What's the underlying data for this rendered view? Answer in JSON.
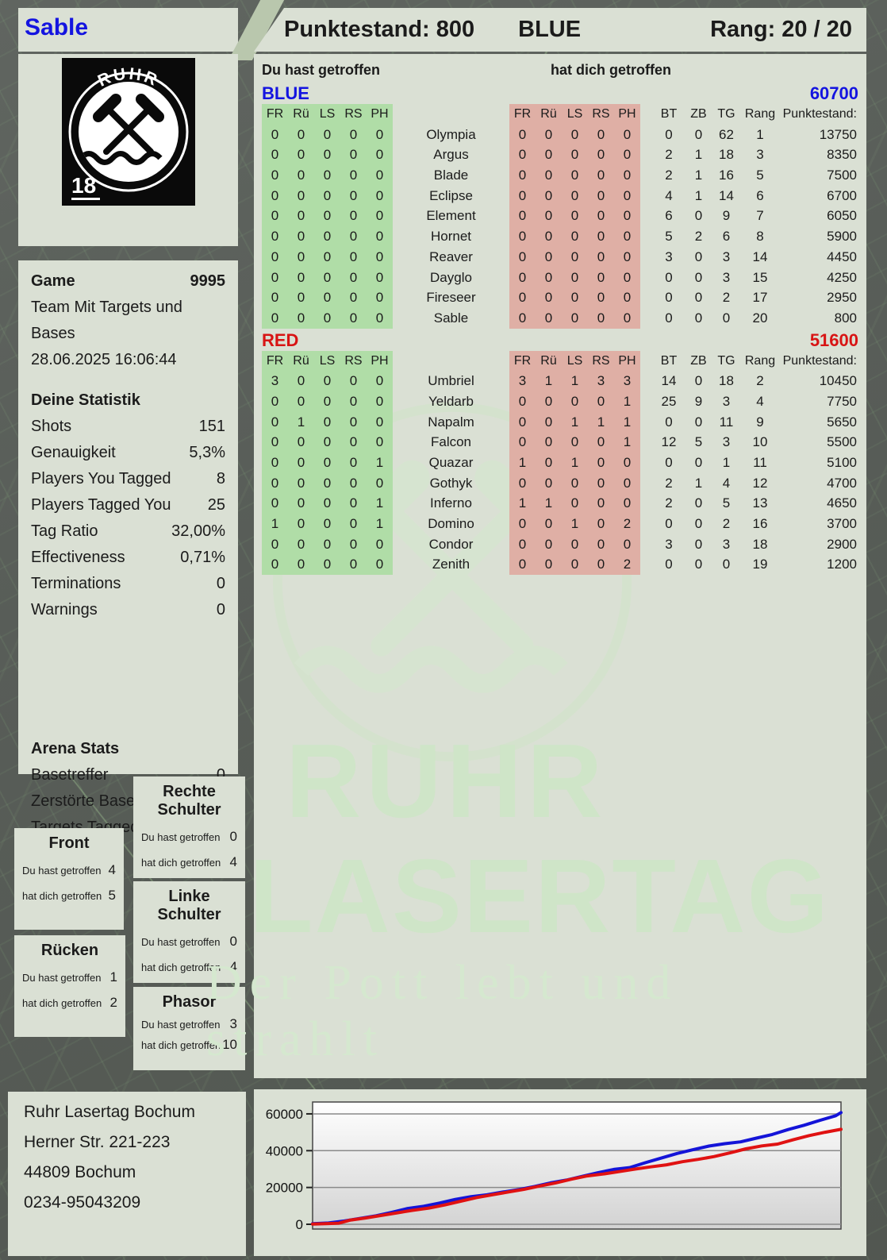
{
  "header": {
    "player_name": "Sable",
    "score_label": "Punktestand: 800",
    "team": "BLUE",
    "rank_label": "Rang: 20 / 20"
  },
  "logo": {
    "brand_top": "RUHR",
    "brand_bottom": "LASERTAG",
    "age_badge": "18"
  },
  "game": {
    "label": "Game",
    "number": "9995",
    "mode": "Team Mit Targets und Bases",
    "datetime": "28.06.2025 16:06:44"
  },
  "stats": {
    "title": "Deine Statistik",
    "rows": [
      {
        "label": "Shots",
        "value": "151"
      },
      {
        "label": "Genauigkeit",
        "value": "5,3%"
      },
      {
        "label": "Players You Tagged",
        "value": "8"
      },
      {
        "label": "Players Tagged You",
        "value": "25"
      },
      {
        "label": "Tag Ratio",
        "value": "32,00%"
      },
      {
        "label": "Effectiveness",
        "value": "0,71%"
      },
      {
        "label": "Terminations",
        "value": "0"
      },
      {
        "label": "Warnings",
        "value": "0"
      }
    ]
  },
  "arena": {
    "title": "Arena Stats",
    "rows": [
      {
        "label": "Basetreffer",
        "value": "0"
      },
      {
        "label": "Zerstörte Base",
        "value": "0"
      },
      {
        "label": "Targets Tagged",
        "value": "0"
      }
    ]
  },
  "hit_labels": {
    "you": "Du hast getroffen",
    "them": "hat dich getroffen"
  },
  "hitzones": [
    {
      "title": "Front",
      "you": "4",
      "them": "5"
    },
    {
      "title": "Rücken",
      "you": "1",
      "them": "2"
    },
    {
      "title": "Rechte Schulter",
      "you": "0",
      "them": "4"
    },
    {
      "title": "Linke Schulter",
      "you": "0",
      "them": "4"
    },
    {
      "title": "Phasor",
      "you": "3",
      "them": "10"
    }
  ],
  "columns": {
    "hit": [
      "FR",
      "Rü",
      "LS",
      "RS",
      "PH"
    ],
    "stats": [
      "BT",
      "ZB",
      "TG",
      "Rang",
      "Punktestand:"
    ]
  },
  "teams": [
    {
      "name": "BLUE",
      "color": "#1414e0",
      "total": "60700",
      "players": [
        {
          "name": "Olympia",
          "you": [
            0,
            0,
            0,
            0,
            0
          ],
          "them": [
            0,
            0,
            0,
            0,
            0
          ],
          "bt": 0,
          "zb": 0,
          "tg": 62,
          "rang": 1,
          "points": 13750
        },
        {
          "name": "Argus",
          "you": [
            0,
            0,
            0,
            0,
            0
          ],
          "them": [
            0,
            0,
            0,
            0,
            0
          ],
          "bt": 2,
          "zb": 1,
          "tg": 18,
          "rang": 3,
          "points": 8350
        },
        {
          "name": "Blade",
          "you": [
            0,
            0,
            0,
            0,
            0
          ],
          "them": [
            0,
            0,
            0,
            0,
            0
          ],
          "bt": 2,
          "zb": 1,
          "tg": 16,
          "rang": 5,
          "points": 7500
        },
        {
          "name": "Eclipse",
          "you": [
            0,
            0,
            0,
            0,
            0
          ],
          "them": [
            0,
            0,
            0,
            0,
            0
          ],
          "bt": 4,
          "zb": 1,
          "tg": 14,
          "rang": 6,
          "points": 6700
        },
        {
          "name": "Element",
          "you": [
            0,
            0,
            0,
            0,
            0
          ],
          "them": [
            0,
            0,
            0,
            0,
            0
          ],
          "bt": 6,
          "zb": 0,
          "tg": 9,
          "rang": 7,
          "points": 6050
        },
        {
          "name": "Hornet",
          "you": [
            0,
            0,
            0,
            0,
            0
          ],
          "them": [
            0,
            0,
            0,
            0,
            0
          ],
          "bt": 5,
          "zb": 2,
          "tg": 6,
          "rang": 8,
          "points": 5900
        },
        {
          "name": "Reaver",
          "you": [
            0,
            0,
            0,
            0,
            0
          ],
          "them": [
            0,
            0,
            0,
            0,
            0
          ],
          "bt": 3,
          "zb": 0,
          "tg": 3,
          "rang": 14,
          "points": 4450
        },
        {
          "name": "Dayglo",
          "you": [
            0,
            0,
            0,
            0,
            0
          ],
          "them": [
            0,
            0,
            0,
            0,
            0
          ],
          "bt": 0,
          "zb": 0,
          "tg": 3,
          "rang": 15,
          "points": 4250
        },
        {
          "name": "Fireseer",
          "you": [
            0,
            0,
            0,
            0,
            0
          ],
          "them": [
            0,
            0,
            0,
            0,
            0
          ],
          "bt": 0,
          "zb": 0,
          "tg": 2,
          "rang": 17,
          "points": 2950
        },
        {
          "name": "Sable",
          "you": [
            0,
            0,
            0,
            0,
            0
          ],
          "them": [
            0,
            0,
            0,
            0,
            0
          ],
          "bt": 0,
          "zb": 0,
          "tg": 0,
          "rang": 20,
          "points": 800
        }
      ]
    },
    {
      "name": "RED",
      "color": "#d81414",
      "total": "51600",
      "players": [
        {
          "name": "Umbriel",
          "you": [
            3,
            0,
            0,
            0,
            0
          ],
          "them": [
            3,
            1,
            1,
            3,
            3
          ],
          "bt": 14,
          "zb": 0,
          "tg": 18,
          "rang": 2,
          "points": 10450
        },
        {
          "name": "Yeldarb",
          "you": [
            0,
            0,
            0,
            0,
            0
          ],
          "them": [
            0,
            0,
            0,
            0,
            1
          ],
          "bt": 25,
          "zb": 9,
          "tg": 3,
          "rang": 4,
          "points": 7750
        },
        {
          "name": "Napalm",
          "you": [
            0,
            1,
            0,
            0,
            0
          ],
          "them": [
            0,
            0,
            1,
            1,
            1
          ],
          "bt": 0,
          "zb": 0,
          "tg": 11,
          "rang": 9,
          "points": 5650
        },
        {
          "name": "Falcon",
          "you": [
            0,
            0,
            0,
            0,
            0
          ],
          "them": [
            0,
            0,
            0,
            0,
            1
          ],
          "bt": 12,
          "zb": 5,
          "tg": 3,
          "rang": 10,
          "points": 5500
        },
        {
          "name": "Quazar",
          "you": [
            0,
            0,
            0,
            0,
            1
          ],
          "them": [
            1,
            0,
            1,
            0,
            0
          ],
          "bt": 0,
          "zb": 0,
          "tg": 1,
          "rang": 11,
          "points": 5100
        },
        {
          "name": "Gothyk",
          "you": [
            0,
            0,
            0,
            0,
            0
          ],
          "them": [
            0,
            0,
            0,
            0,
            0
          ],
          "bt": 2,
          "zb": 1,
          "tg": 4,
          "rang": 12,
          "points": 4700
        },
        {
          "name": "Inferno",
          "you": [
            0,
            0,
            0,
            0,
            1
          ],
          "them": [
            1,
            1,
            0,
            0,
            0
          ],
          "bt": 2,
          "zb": 0,
          "tg": 5,
          "rang": 13,
          "points": 4650
        },
        {
          "name": "Domino",
          "you": [
            1,
            0,
            0,
            0,
            1
          ],
          "them": [
            0,
            0,
            1,
            0,
            2
          ],
          "bt": 0,
          "zb": 0,
          "tg": 2,
          "rang": 16,
          "points": 3700
        },
        {
          "name": "Condor",
          "you": [
            0,
            0,
            0,
            0,
            0
          ],
          "them": [
            0,
            0,
            0,
            0,
            0
          ],
          "bt": 3,
          "zb": 0,
          "tg": 3,
          "rang": 18,
          "points": 2900
        },
        {
          "name": "Zenith",
          "you": [
            0,
            0,
            0,
            0,
            0
          ],
          "them": [
            0,
            0,
            0,
            0,
            2
          ],
          "bt": 0,
          "zb": 0,
          "tg": 0,
          "rang": 19,
          "points": 1200
        }
      ]
    }
  ],
  "address": {
    "line1": "Ruhr Lasertag Bochum",
    "line2": "Herner Str. 221-223",
    "line3": "44809 Bochum",
    "line4": "0234-95043209"
  },
  "watermark": {
    "line1": "RUHR",
    "line2": "LASERTAG",
    "tagline": "Der Pott lebt und strahlt"
  },
  "chart_data": {
    "type": "line",
    "title": "",
    "xlabel": "",
    "ylabel": "",
    "ylim": [
      0,
      63000
    ],
    "yticks": [
      0,
      20000,
      40000,
      60000
    ],
    "grid": true,
    "legend_position": "none",
    "series": [
      {
        "name": "BLUE",
        "color": "#1414d8",
        "points": [
          [
            0,
            300
          ],
          [
            0.03,
            700
          ],
          [
            0.06,
            1800
          ],
          [
            0.09,
            3200
          ],
          [
            0.12,
            4600
          ],
          [
            0.15,
            6500
          ],
          [
            0.18,
            8600
          ],
          [
            0.21,
            9800
          ],
          [
            0.24,
            11500
          ],
          [
            0.27,
            13500
          ],
          [
            0.3,
            15000
          ],
          [
            0.33,
            16000
          ],
          [
            0.36,
            17500
          ],
          [
            0.39,
            18800
          ],
          [
            0.42,
            20500
          ],
          [
            0.45,
            22500
          ],
          [
            0.48,
            24000
          ],
          [
            0.51,
            26000
          ],
          [
            0.54,
            28000
          ],
          [
            0.57,
            29800
          ],
          [
            0.6,
            30800
          ],
          [
            0.63,
            33500
          ],
          [
            0.66,
            36000
          ],
          [
            0.69,
            38500
          ],
          [
            0.72,
            40500
          ],
          [
            0.75,
            42500
          ],
          [
            0.78,
            43800
          ],
          [
            0.81,
            44800
          ],
          [
            0.84,
            46800
          ],
          [
            0.87,
            48800
          ],
          [
            0.9,
            51500
          ],
          [
            0.93,
            53800
          ],
          [
            0.96,
            56500
          ],
          [
            0.99,
            59000
          ],
          [
            1,
            60700
          ]
        ]
      },
      {
        "name": "RED",
        "color": "#e01212",
        "points": [
          [
            0,
            100
          ],
          [
            0.03,
            400
          ],
          [
            0.05,
            600
          ],
          [
            0.07,
            2200
          ],
          [
            0.1,
            3400
          ],
          [
            0.13,
            4800
          ],
          [
            0.16,
            6200
          ],
          [
            0.19,
            7600
          ],
          [
            0.22,
            8800
          ],
          [
            0.25,
            10500
          ],
          [
            0.28,
            12500
          ],
          [
            0.31,
            14500
          ],
          [
            0.34,
            16000
          ],
          [
            0.37,
            17500
          ],
          [
            0.4,
            19000
          ],
          [
            0.43,
            20800
          ],
          [
            0.46,
            22500
          ],
          [
            0.49,
            24500
          ],
          [
            0.52,
            26300
          ],
          [
            0.55,
            27300
          ],
          [
            0.58,
            28600
          ],
          [
            0.61,
            30000
          ],
          [
            0.64,
            31200
          ],
          [
            0.67,
            32300
          ],
          [
            0.7,
            34000
          ],
          [
            0.73,
            35300
          ],
          [
            0.76,
            36800
          ],
          [
            0.79,
            38800
          ],
          [
            0.82,
            41000
          ],
          [
            0.85,
            42600
          ],
          [
            0.88,
            43600
          ],
          [
            0.91,
            46000
          ],
          [
            0.94,
            48200
          ],
          [
            0.97,
            50000
          ],
          [
            1,
            51600
          ]
        ]
      }
    ]
  }
}
